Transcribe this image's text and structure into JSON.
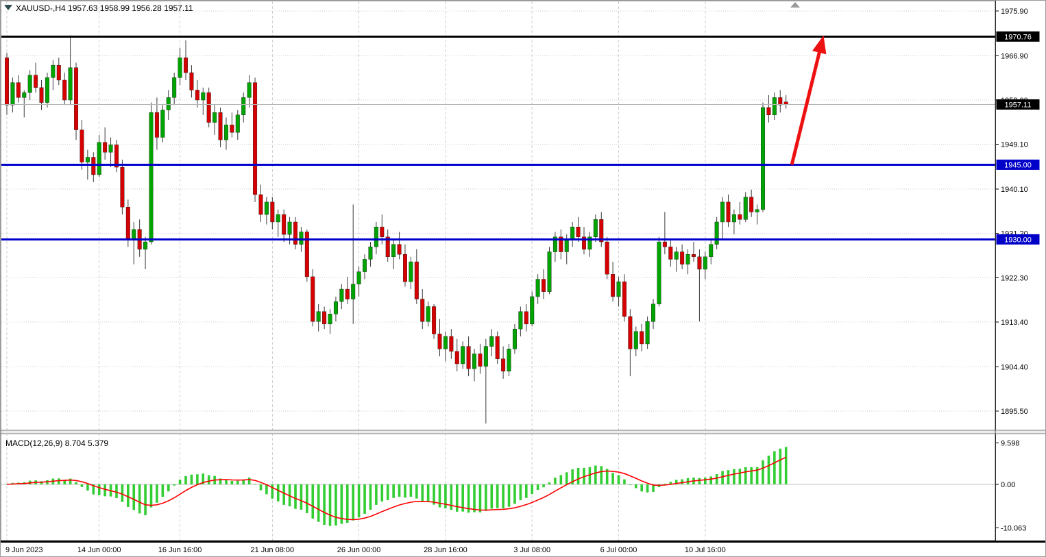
{
  "window": {
    "symbol_label": "XAUUSD-,H4 1957.63 1958.99 1956.28 1957.11"
  },
  "colors": {
    "background": "#ffffff",
    "bull": "#00a400",
    "bear": "#d60000",
    "wick": "#3a3a3a",
    "grid": "#cfcfcf",
    "macd_histogram": "#32cd32",
    "macd_signal": "#ff0000",
    "level_black": "#000000",
    "level_blue": "#0000cc",
    "current_price_line": "#b4b4b4",
    "arrow": "#ee1111"
  },
  "chart_data": {
    "type": "candlestick",
    "symbol": "XAUUSD",
    "timeframe": "H4",
    "current_ohlc": {
      "open": "1957.63",
      "high": "1958.99",
      "low": "1956.28",
      "close": "1957.11"
    },
    "price_axis": {
      "ticks": [
        "1975.90",
        "1966.90",
        "1958.00",
        "1949.10",
        "1940.10",
        "1931.20",
        "1922.30",
        "1913.40",
        "1904.40",
        "1895.50"
      ],
      "ylim": [
        1891.6,
        1978.1
      ]
    },
    "time_labels": [
      {
        "label": "9 Jun 2023",
        "index": 0
      },
      {
        "label": "14 Jun 00:00",
        "index": 16
      },
      {
        "label": "16 Jun 16:00",
        "index": 30
      },
      {
        "label": "21 Jun 08:00",
        "index": 46
      },
      {
        "label": "26 Jun 00:00",
        "index": 61
      },
      {
        "label": "28 Jun 16:00",
        "index": 76
      },
      {
        "label": "3 Jul 08:00",
        "index": 91
      },
      {
        "label": "6 Jul 00:00",
        "index": 106
      },
      {
        "label": "10 Jul 16:00",
        "index": 121
      }
    ],
    "levels": [
      {
        "label": "1970.76",
        "price": 1970.76,
        "line_color": "#000000",
        "label_bg": "#000000",
        "line_width": 3
      },
      {
        "label": "1945.00",
        "price": 1945.0,
        "line_color": "#0000cc",
        "label_bg": "#0000c8",
        "line_width": 3
      },
      {
        "label": "1930.00",
        "price": 1930.0,
        "line_color": "#0000cc",
        "label_bg": "#0000c8",
        "line_width": 3
      }
    ],
    "current_price": {
      "value": 1957.11,
      "label": "1957.11"
    },
    "trend_arrow": {
      "from_index": 136,
      "from_price": 1945.0,
      "to_index": 141.5,
      "to_price": 1971.0
    },
    "macd": {
      "label": "MACD(12,26,9) 8.704 5.379",
      "fast": 12,
      "slow": 26,
      "signal_period": 9,
      "main_value": 8.704,
      "signal_value": 5.379,
      "ylim": [
        -10.063,
        9.598
      ],
      "axis_ticks": [
        {
          "label": "9.598",
          "value": 9.598
        },
        {
          "label": "0.00",
          "value": 0
        },
        {
          "label": "-10.063",
          "value": -10.063
        }
      ]
    },
    "candles": [
      [
        1966.5,
        1967.5,
        1955,
        1957
      ],
      [
        1957,
        1962.5,
        1955.5,
        1961.5
      ],
      [
        1961.5,
        1963,
        1957.5,
        1958.5
      ],
      [
        1958.5,
        1960,
        1954.5,
        1959.5
      ],
      [
        1959.5,
        1964,
        1958,
        1963
      ],
      [
        1963,
        1965.5,
        1959.5,
        1960.5
      ],
      [
        1960.5,
        1962,
        1956,
        1957.5
      ],
      [
        1957.5,
        1963.5,
        1956.5,
        1962.5
      ],
      [
        1962.5,
        1966,
        1960,
        1965
      ],
      [
        1965,
        1966.5,
        1961,
        1962
      ],
      [
        1962,
        1963.5,
        1957,
        1958
      ],
      [
        1958,
        1971,
        1957,
        1964.5
      ],
      [
        1964.5,
        1965.5,
        1950,
        1952
      ],
      [
        1952,
        1954,
        1944,
        1945.5
      ],
      [
        1945.5,
        1948,
        1942,
        1946.5
      ],
      [
        1946.5,
        1947.5,
        1941.5,
        1943
      ],
      [
        1943,
        1951,
        1942.5,
        1949.5
      ],
      [
        1949.5,
        1952.5,
        1946,
        1947.5
      ],
      [
        1947.5,
        1950.5,
        1944.5,
        1949
      ],
      [
        1949,
        1950,
        1943.5,
        1944.5
      ],
      [
        1944.5,
        1946,
        1935,
        1936.5
      ],
      [
        1936.5,
        1938,
        1928.5,
        1930
      ],
      [
        1930,
        1933.5,
        1925,
        1932
      ],
      [
        1932,
        1934,
        1926.5,
        1928
      ],
      [
        1928,
        1930.5,
        1924,
        1929.5
      ],
      [
        1929.5,
        1957.5,
        1929,
        1955.5
      ],
      [
        1955.5,
        1958.5,
        1948,
        1950.5
      ],
      [
        1950.5,
        1957,
        1949.5,
        1956
      ],
      [
        1956,
        1960,
        1954,
        1958.5
      ],
      [
        1958.5,
        1963.5,
        1957,
        1962.5
      ],
      [
        1962.5,
        1968.5,
        1961,
        1966.5
      ],
      [
        1966.5,
        1970,
        1962,
        1963.5
      ],
      [
        1963.5,
        1965,
        1958.5,
        1960
      ],
      [
        1960,
        1962,
        1956.5,
        1958
      ],
      [
        1958,
        1960.5,
        1955,
        1959.5
      ],
      [
        1959.5,
        1960.5,
        1952.5,
        1953.5
      ],
      [
        1953.5,
        1957,
        1951,
        1955.5
      ],
      [
        1955.5,
        1956.5,
        1948.5,
        1950
      ],
      [
        1950,
        1954.5,
        1948,
        1953
      ],
      [
        1953,
        1955.5,
        1950.5,
        1951.5
      ],
      [
        1951.5,
        1956,
        1950,
        1955
      ],
      [
        1955,
        1959.5,
        1953.5,
        1958.5
      ],
      [
        1958.5,
        1963,
        1956.5,
        1961.5
      ],
      [
        1961.5,
        1962.5,
        1937.5,
        1939
      ],
      [
        1939,
        1941,
        1933.5,
        1935
      ],
      [
        1935,
        1938.5,
        1933,
        1937.5
      ],
      [
        1937.5,
        1938.5,
        1932,
        1933.5
      ],
      [
        1933.5,
        1936,
        1930.5,
        1935
      ],
      [
        1935,
        1936,
        1929.5,
        1931
      ],
      [
        1931,
        1934.5,
        1929,
        1933.5
      ],
      [
        1933.5,
        1934.5,
        1928,
        1929
      ],
      [
        1929,
        1932.5,
        1927.5,
        1931.5
      ],
      [
        1931.5,
        1932,
        1921.5,
        1922.5
      ],
      [
        1922.5,
        1924,
        1912.5,
        1913.5
      ],
      [
        1913.5,
        1917,
        1911.5,
        1915.5
      ],
      [
        1915.5,
        1916.5,
        1912,
        1913
      ],
      [
        1913,
        1916,
        1911,
        1915
      ],
      [
        1915,
        1918.5,
        1913.5,
        1917.5
      ],
      [
        1917.5,
        1921,
        1916,
        1920
      ],
      [
        1920,
        1922.5,
        1917,
        1918
      ],
      [
        1918,
        1937,
        1913,
        1921
      ],
      [
        1921,
        1924.5,
        1918.5,
        1923.5
      ],
      [
        1923.5,
        1927,
        1922,
        1926
      ],
      [
        1926,
        1929.5,
        1924.5,
        1928.5
      ],
      [
        1928.5,
        1933.5,
        1927,
        1932.5
      ],
      [
        1932.5,
        1935,
        1929,
        1930.5
      ],
      [
        1930.5,
        1932,
        1925.5,
        1926.5
      ],
      [
        1926.5,
        1930,
        1924,
        1929
      ],
      [
        1929,
        1931.5,
        1926,
        1927
      ],
      [
        1927,
        1929,
        1920.5,
        1921.5
      ],
      [
        1921.5,
        1926.5,
        1920,
        1925.5
      ],
      [
        1925.5,
        1928,
        1917,
        1918
      ],
      [
        1918,
        1920,
        1912,
        1913.5
      ],
      [
        1913.5,
        1917.5,
        1912.5,
        1916.5
      ],
      [
        1916.5,
        1917,
        1910,
        1911
      ],
      [
        1911,
        1914,
        1906.5,
        1908
      ],
      [
        1908,
        1911.5,
        1905.5,
        1910.5
      ],
      [
        1910.5,
        1912,
        1906,
        1907.5
      ],
      [
        1907.5,
        1910,
        1903.5,
        1905
      ],
      [
        1905,
        1909.5,
        1904,
        1908.5
      ],
      [
        1908.5,
        1910.5,
        1902.5,
        1904
      ],
      [
        1904,
        1908,
        1901.5,
        1907
      ],
      [
        1907,
        1909,
        1903,
        1904.5
      ],
      [
        1904.5,
        1910,
        1893,
        1908.5
      ],
      [
        1908.5,
        1912,
        1906.5,
        1910.5
      ],
      [
        1910.5,
        1911.5,
        1905,
        1906
      ],
      [
        1906,
        1908.5,
        1902,
        1903.5
      ],
      [
        1903.5,
        1909,
        1902.5,
        1908
      ],
      [
        1908,
        1913,
        1907,
        1912
      ],
      [
        1912,
        1916.5,
        1910.5,
        1915.5
      ],
      [
        1915.5,
        1917,
        1911.5,
        1913
      ],
      [
        1913,
        1919.5,
        1912.5,
        1918.5
      ],
      [
        1918.5,
        1923,
        1917,
        1922
      ],
      [
        1922,
        1924,
        1918,
        1919.5
      ],
      [
        1919.5,
        1928.5,
        1919,
        1927.5
      ],
      [
        1927.5,
        1931.5,
        1925.5,
        1930.5
      ],
      [
        1930.5,
        1932,
        1926,
        1927.5
      ],
      [
        1927.5,
        1931,
        1925,
        1930
      ],
      [
        1930,
        1933.5,
        1928.5,
        1932.5
      ],
      [
        1932.5,
        1934.5,
        1929.5,
        1930.5
      ],
      [
        1930.5,
        1932.5,
        1927,
        1928
      ],
      [
        1928,
        1931.5,
        1926.5,
        1930.5
      ],
      [
        1930.5,
        1935,
        1929.5,
        1934
      ],
      [
        1934,
        1935.5,
        1928.5,
        1929.5
      ],
      [
        1929.5,
        1930.5,
        1922,
        1923
      ],
      [
        1923,
        1925.5,
        1917.5,
        1918.5
      ],
      [
        1918.5,
        1922.5,
        1916.5,
        1921.5
      ],
      [
        1921.5,
        1923,
        1913.5,
        1914.5
      ],
      [
        1914.5,
        1916,
        1902.5,
        1908
      ],
      [
        1908,
        1912.5,
        1906.5,
        1911.5
      ],
      [
        1911.5,
        1913,
        1907.5,
        1909
      ],
      [
        1909,
        1914.5,
        1908,
        1913.5
      ],
      [
        1913.5,
        1918,
        1912,
        1917
      ],
      [
        1917,
        1930.5,
        1916.5,
        1929.5
      ],
      [
        1929.5,
        1935.5,
        1927,
        1928.5
      ],
      [
        1928.5,
        1930,
        1924.5,
        1926
      ],
      [
        1926,
        1928.5,
        1923.5,
        1927.5
      ],
      [
        1927.5,
        1929,
        1924,
        1925
      ],
      [
        1925,
        1928,
        1923,
        1927
      ],
      [
        1927,
        1929.5,
        1925.5,
        1926.5
      ],
      [
        1926.5,
        1928,
        1913.5,
        1924
      ],
      [
        1924,
        1927.5,
        1922,
        1926.5
      ],
      [
        1926.5,
        1930,
        1925,
        1929
      ],
      [
        1929,
        1934.5,
        1928,
        1933.5
      ],
      [
        1933.5,
        1938.5,
        1930,
        1937.5
      ],
      [
        1937.5,
        1939,
        1932.5,
        1933.5
      ],
      [
        1933.5,
        1936,
        1931,
        1935
      ],
      [
        1935,
        1937.5,
        1933,
        1934
      ],
      [
        1934,
        1939.5,
        1933.5,
        1938.5
      ],
      [
        1938.5,
        1940,
        1934.5,
        1935.5
      ],
      [
        1935.5,
        1937,
        1933,
        1936
      ],
      [
        1936,
        1957.5,
        1935.5,
        1956.5
      ],
      [
        1956.5,
        1959,
        1953.5,
        1955
      ],
      [
        1955,
        1959.5,
        1954,
        1958.5
      ],
      [
        1958.5,
        1960,
        1955.5,
        1957
      ],
      [
        1957.63,
        1958.99,
        1956.28,
        1957.11
      ]
    ]
  }
}
